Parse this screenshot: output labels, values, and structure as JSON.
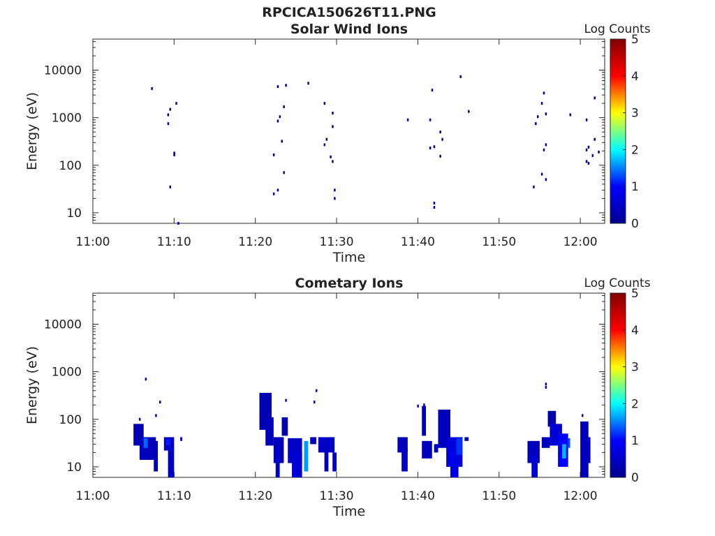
{
  "figure_title": "RPCICA150626T11.PNG",
  "colors": {
    "background": "#ffffff",
    "axis": "#262626",
    "low_count_ion": "#00008f",
    "colormap": [
      "#00008f",
      "#0000ff",
      "#00ffff",
      "#ffff00",
      "#ff0000",
      "#800000"
    ]
  },
  "chart_data": [
    {
      "type": "heatmap",
      "title": "Solar Wind Ions",
      "xlabel": "Time",
      "ylabel": "Energy (eV)",
      "x_ticks": [
        "11:00",
        "11:10",
        "11:20",
        "11:30",
        "11:40",
        "11:50",
        "12:00"
      ],
      "y_ticks": [
        "10",
        "100",
        "1000",
        "10000"
      ],
      "y_scale": "log",
      "ylim": [
        6,
        45000
      ],
      "xlim": [
        "11:00",
        "12:03"
      ],
      "colorbar": {
        "label": "Log Counts",
        "ticks": [
          "0",
          "1",
          "2",
          "3",
          "4",
          "5"
        ],
        "range": [
          0,
          5
        ]
      },
      "points": [
        [
          "11:07:15",
          4100,
          0.1
        ],
        [
          "11:09:30",
          1500,
          0.1
        ],
        [
          "11:09:15",
          1150,
          0.1
        ],
        [
          "11:09:15",
          750,
          0.1
        ],
        [
          "11:10:15",
          2000,
          0.1
        ],
        [
          "11:10:00",
          180,
          0.2
        ],
        [
          "11:10:00",
          165,
          0.2
        ],
        [
          "11:09:30",
          35,
          0.2
        ],
        [
          "11:10:30",
          6,
          0.1
        ],
        [
          "11:22:45",
          4500,
          0.1
        ],
        [
          "11:23:45",
          4800,
          0.1
        ],
        [
          "11:26:30",
          5300,
          0.1
        ],
        [
          "11:23:30",
          1700,
          0.1
        ],
        [
          "11:23:00",
          1050,
          0.1
        ],
        [
          "11:22:45",
          850,
          0.1
        ],
        [
          "11:23:15",
          320,
          0.1
        ],
        [
          "11:22:15",
          165,
          0.1
        ],
        [
          "11:23:30",
          70,
          0.2
        ],
        [
          "11:22:45",
          30,
          0.2
        ],
        [
          "11:22:15",
          25,
          0.2
        ],
        [
          "11:28:30",
          2000,
          0.1
        ],
        [
          "11:29:30",
          1250,
          0.1
        ],
        [
          "11:29:30",
          650,
          0.1
        ],
        [
          "11:28:45",
          350,
          0.1
        ],
        [
          "11:28:30",
          270,
          0.1
        ],
        [
          "11:29:15",
          150,
          0.1
        ],
        [
          "11:29:30",
          120,
          0.1
        ],
        [
          "11:29:45",
          30,
          0.2
        ],
        [
          "11:29:45",
          20,
          0.2
        ],
        [
          "11:38:45",
          900,
          0.1
        ],
        [
          "11:41:45",
          3800,
          0.1
        ],
        [
          "11:41:30",
          900,
          0.1
        ],
        [
          "11:42:45",
          500,
          0.1
        ],
        [
          "11:43:00",
          350,
          0.1
        ],
        [
          "11:41:30",
          230,
          0.1
        ],
        [
          "11:42:00",
          245,
          0.1
        ],
        [
          "11:42:45",
          155,
          0.1
        ],
        [
          "11:42:00",
          16,
          0.2
        ],
        [
          "11:42:00",
          13,
          0.2
        ],
        [
          "11:45:15",
          7300,
          0.1
        ],
        [
          "11:46:15",
          1350,
          0.1
        ],
        [
          "11:55:30",
          3300,
          0.1
        ],
        [
          "11:55:15",
          2000,
          0.1
        ],
        [
          "11:54:45",
          1050,
          0.1
        ],
        [
          "11:54:30",
          750,
          0.1
        ],
        [
          "11:55:45",
          1200,
          0.1
        ],
        [
          "11:58:45",
          1150,
          0.1
        ],
        [
          "11:55:45",
          270,
          0.1
        ],
        [
          "11:55:30",
          210,
          0.1
        ],
        [
          "11:55:15",
          65,
          0.2
        ],
        [
          "11:55:45",
          50,
          0.2
        ],
        [
          "11:54:15",
          35,
          0.2
        ],
        [
          "12:00:45",
          900,
          0.1
        ],
        [
          "12:01:45",
          2600,
          0.1
        ],
        [
          "12:01:45",
          350,
          0.1
        ],
        [
          "12:01:00",
          240,
          0.1
        ],
        [
          "12:00:45",
          210,
          0.1
        ],
        [
          "12:02:15",
          190,
          0.1
        ],
        [
          "12:01:30",
          160,
          0.1
        ],
        [
          "12:00:45",
          120,
          0.1
        ],
        [
          "12:01:00",
          110,
          0.1
        ]
      ]
    },
    {
      "type": "heatmap",
      "title": "Cometary Ions",
      "xlabel": "Time",
      "ylabel": "Energy (eV)",
      "x_ticks": [
        "11:00",
        "11:10",
        "11:20",
        "11:30",
        "11:40",
        "11:50",
        "12:00"
      ],
      "y_ticks": [
        "10",
        "100",
        "1000",
        "10000"
      ],
      "y_scale": "log",
      "ylim": [
        6,
        45000
      ],
      "xlim": [
        "11:00",
        "12:03"
      ],
      "colorbar": {
        "label": "Log Counts",
        "ticks": [
          "0",
          "1",
          "2",
          "3",
          "4",
          "5"
        ],
        "range": [
          0,
          5
        ]
      },
      "points": [
        [
          "11:06:30",
          700,
          0.2
        ],
        [
          "11:05:45",
          100,
          0.2
        ],
        [
          "11:07:45",
          120,
          0.2
        ],
        [
          "11:08:15",
          230,
          0.2
        ],
        [
          "11:23:45",
          250,
          0.2
        ],
        [
          "11:27:30",
          400,
          0.6
        ],
        [
          "11:27:15",
          230,
          0.2
        ],
        [
          "11:40:00",
          190,
          0.2
        ],
        [
          "11:40:45",
          200,
          0.2
        ],
        [
          "11:55:45",
          550,
          0.2
        ],
        [
          "11:55:45",
          470,
          0.2
        ],
        [
          "12:00:15",
          120,
          0.2
        ]
      ],
      "blocks": [
        [
          "11:05:00",
          "11:06:15",
          28,
          80,
          0.3
        ],
        [
          "11:05:45",
          "11:07:45",
          14,
          42,
          0.4
        ],
        [
          "11:06:15",
          "11:06:45",
          25,
          40,
          1.4
        ],
        [
          "11:07:30",
          "11:08:00",
          8,
          35,
          0.3
        ],
        [
          "11:08:45",
          "11:10:00",
          22,
          42,
          0.5
        ],
        [
          "11:09:00",
          "11:09:30",
          28,
          38,
          1.1
        ],
        [
          "11:09:15",
          "11:10:00",
          6,
          22,
          0.5
        ],
        [
          "11:10:45",
          "11:11:00",
          35,
          42,
          0.5
        ],
        [
          "11:20:30",
          "11:22:00",
          60,
          360,
          0.3
        ],
        [
          "11:21:15",
          "11:22:15",
          28,
          110,
          0.4
        ],
        [
          "11:22:15",
          "11:23:30",
          12,
          42,
          0.4
        ],
        [
          "11:22:30",
          "11:23:00",
          6,
          25,
          0.5
        ],
        [
          "11:23:15",
          "11:24:00",
          45,
          110,
          0.3
        ],
        [
          "11:24:00",
          "11:25:45",
          12,
          40,
          0.5
        ],
        [
          "11:24:30",
          "11:25:45",
          6,
          20,
          0.6
        ],
        [
          "11:26:00",
          "11:26:30",
          8,
          35,
          1.6
        ],
        [
          "11:26:45",
          "11:27:30",
          30,
          42,
          0.4
        ],
        [
          "11:27:45",
          "11:29:45",
          20,
          42,
          0.5
        ],
        [
          "11:28:30",
          "11:29:00",
          8,
          25,
          0.4
        ],
        [
          "11:29:30",
          "11:30:00",
          8,
          20,
          0.5
        ],
        [
          "11:37:30",
          "11:38:45",
          20,
          42,
          0.4
        ],
        [
          "11:38:00",
          "11:38:45",
          8,
          25,
          0.5
        ],
        [
          "11:40:30",
          "11:41:00",
          45,
          190,
          0.3
        ],
        [
          "11:40:30",
          "11:41:45",
          15,
          35,
          0.4
        ],
        [
          "11:42:00",
          "11:42:30",
          20,
          30,
          0.4
        ],
        [
          "11:42:30",
          "11:44:00",
          25,
          160,
          0.4
        ],
        [
          "11:43:30",
          "11:45:30",
          10,
          42,
          0.7
        ],
        [
          "11:44:00",
          "11:45:00",
          6,
          20,
          0.8
        ],
        [
          "11:44:45",
          "11:45:30",
          18,
          40,
          1.2
        ],
        [
          "11:45:45",
          "11:46:15",
          35,
          42,
          0.4
        ],
        [
          "11:53:30",
          "11:55:00",
          12,
          35,
          0.4
        ],
        [
          "11:54:00",
          "11:54:45",
          6,
          18,
          0.6
        ],
        [
          "11:55:15",
          "11:56:15",
          25,
          42,
          0.4
        ],
        [
          "11:56:00",
          "11:57:00",
          70,
          150,
          0.3
        ],
        [
          "11:56:15",
          "11:57:45",
          28,
          80,
          0.6
        ],
        [
          "11:57:15",
          "11:58:30",
          10,
          50,
          1.0
        ],
        [
          "11:57:45",
          "11:58:15",
          15,
          30,
          1.7
        ],
        [
          "11:58:30",
          "11:58:45",
          25,
          40,
          1.3
        ],
        [
          "12:00:00",
          "12:01:00",
          6,
          90,
          0.4
        ],
        [
          "12:00:30",
          "12:01:15",
          12,
          42,
          0.4
        ]
      ]
    }
  ]
}
